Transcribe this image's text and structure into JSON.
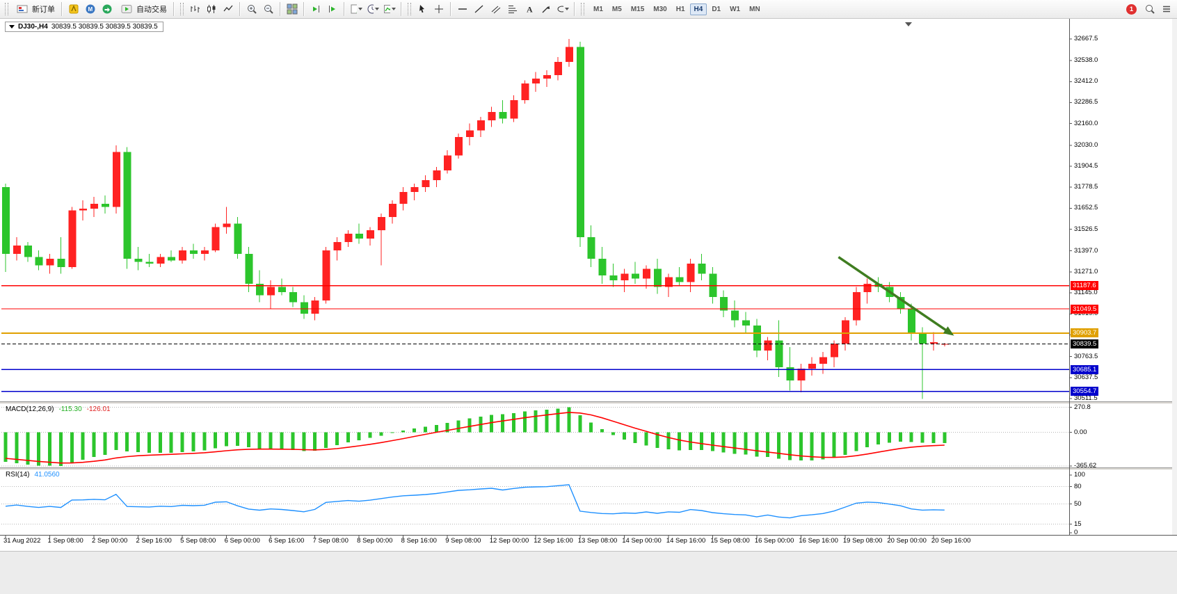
{
  "toolbar": {
    "new_order_label": "新订单",
    "auto_trading_label": "自动交易",
    "timeframes": [
      "M1",
      "M5",
      "M15",
      "M30",
      "H1",
      "H4",
      "D1",
      "W1",
      "MN"
    ],
    "active_timeframe": "H4",
    "notification_count": "1"
  },
  "chart": {
    "symbol_timeframe": "DJ30-,H4",
    "ohlc": "30839.5 30839.5 30839.5 30839.5"
  },
  "chart_data": {
    "type": "candlestick",
    "symbol": "DJ30-",
    "timeframe": "H4",
    "colors": {
      "candle_up": "#ff2222",
      "candle_down": "#2cc52c",
      "macd_histogram": "#2cc52c",
      "macd_signal": "#ff0000",
      "rsi_line": "#1e90ff"
    },
    "y_range": {
      "top": 32752,
      "bottom": 30500
    },
    "y_ticks": [
      "32667.5",
      "32538.0",
      "32412.0",
      "32286.5",
      "32160.0",
      "32030.0",
      "31904.5",
      "31778.5",
      "31652.5",
      "31526.5",
      "31397.0",
      "31271.0",
      "31145.0",
      "31019.0",
      "30893.0",
      "30763.5",
      "30637.5",
      "30511.5"
    ],
    "x_labels": [
      [
        0,
        "31 Aug 2022"
      ],
      [
        4,
        "1 Sep 08:00"
      ],
      [
        8,
        "2 Sep 00:00"
      ],
      [
        12,
        "2 Sep 16:00"
      ],
      [
        16,
        "5 Sep 08:00"
      ],
      [
        20,
        "6 Sep 00:00"
      ],
      [
        24,
        "6 Sep 16:00"
      ],
      [
        28,
        "7 Sep 08:00"
      ],
      [
        32,
        "8 Sep 00:00"
      ],
      [
        36,
        "8 Sep 16:00"
      ],
      [
        40,
        "9 Sep 08:00"
      ],
      [
        44,
        "12 Sep 00:00"
      ],
      [
        48,
        "12 Sep 16:00"
      ],
      [
        52,
        "13 Sep 08:00"
      ],
      [
        56,
        "14 Sep 00:00"
      ],
      [
        60,
        "14 Sep 16:00"
      ],
      [
        64,
        "15 Sep 08:00"
      ],
      [
        68,
        "16 Sep 00:00"
      ],
      [
        72,
        "16 Sep 16:00"
      ],
      [
        76,
        "19 Sep 08:00"
      ],
      [
        80,
        "20 Sep 00:00"
      ],
      [
        84,
        "20 Sep 16:00"
      ]
    ],
    "candles": [
      [
        31780,
        31800,
        31270,
        31380
      ],
      [
        31380,
        31480,
        31340,
        31430
      ],
      [
        31430,
        31450,
        31330,
        31360
      ],
      [
        31360,
        31400,
        31280,
        31310
      ],
      [
        31310,
        31380,
        31260,
        31350
      ],
      [
        31350,
        31480,
        31260,
        31300
      ],
      [
        31300,
        31660,
        31290,
        31640
      ],
      [
        31640,
        31700,
        31580,
        31650
      ],
      [
        31650,
        31720,
        31600,
        31680
      ],
      [
        31680,
        31730,
        31620,
        31660
      ],
      [
        31660,
        32030,
        31620,
        31990
      ],
      [
        31990,
        32020,
        31290,
        31350
      ],
      [
        31350,
        31420,
        31280,
        31330
      ],
      [
        31330,
        31380,
        31300,
        31320
      ],
      [
        31320,
        31380,
        31300,
        31360
      ],
      [
        31360,
        31400,
        31330,
        31340
      ],
      [
        31340,
        31420,
        31320,
        31400
      ],
      [
        31400,
        31440,
        31350,
        31380
      ],
      [
        31380,
        31420,
        31340,
        31400
      ],
      [
        31400,
        31560,
        31390,
        31540
      ],
      [
        31540,
        31660,
        31500,
        31560
      ],
      [
        31560,
        31600,
        31350,
        31380
      ],
      [
        31380,
        31420,
        31150,
        31200
      ],
      [
        31200,
        31280,
        31090,
        31130
      ],
      [
        31130,
        31220,
        31050,
        31180
      ],
      [
        31180,
        31230,
        31130,
        31150
      ],
      [
        31150,
        31180,
        31060,
        31090
      ],
      [
        31090,
        31130,
        30990,
        31020
      ],
      [
        31020,
        31120,
        30980,
        31100
      ],
      [
        31100,
        31420,
        31080,
        31400
      ],
      [
        31400,
        31480,
        31340,
        31450
      ],
      [
        31450,
        31520,
        31420,
        31500
      ],
      [
        31500,
        31560,
        31440,
        31470
      ],
      [
        31470,
        31540,
        31430,
        31520
      ],
      [
        31520,
        31620,
        31310,
        31600
      ],
      [
        31600,
        31700,
        31560,
        31680
      ],
      [
        31680,
        31780,
        31640,
        31750
      ],
      [
        31750,
        31800,
        31700,
        31780
      ],
      [
        31780,
        31850,
        31750,
        31820
      ],
      [
        31820,
        31900,
        31780,
        31880
      ],
      [
        31880,
        32000,
        31860,
        31970
      ],
      [
        31970,
        32100,
        31950,
        32080
      ],
      [
        32080,
        32160,
        32030,
        32120
      ],
      [
        32120,
        32200,
        32080,
        32180
      ],
      [
        32180,
        32260,
        32140,
        32230
      ],
      [
        32230,
        32300,
        32160,
        32190
      ],
      [
        32190,
        32330,
        32170,
        32300
      ],
      [
        32300,
        32420,
        32280,
        32400
      ],
      [
        32400,
        32470,
        32350,
        32430
      ],
      [
        32430,
        32480,
        32380,
        32450
      ],
      [
        32450,
        32560,
        32420,
        32530
      ],
      [
        32530,
        32667.5,
        32500,
        32620
      ],
      [
        32620,
        32650,
        31420,
        31480
      ],
      [
        31480,
        31550,
        31300,
        31350
      ],
      [
        31350,
        31420,
        31200,
        31250
      ],
      [
        31250,
        31320,
        31180,
        31220
      ],
      [
        31220,
        31290,
        31150,
        31260
      ],
      [
        31260,
        31330,
        31200,
        31230
      ],
      [
        31230,
        31310,
        31170,
        31290
      ],
      [
        31290,
        31350,
        31140,
        31180
      ],
      [
        31180,
        31260,
        31120,
        31240
      ],
      [
        31240,
        31300,
        31190,
        31210
      ],
      [
        31210,
        31350,
        31150,
        31320
      ],
      [
        31320,
        31380,
        31220,
        31260
      ],
      [
        31260,
        31300,
        31080,
        31120
      ],
      [
        31120,
        31160,
        31000,
        31040
      ],
      [
        31040,
        31100,
        30940,
        30980
      ],
      [
        30980,
        31030,
        30900,
        30950
      ],
      [
        30950,
        30990,
        30760,
        30800
      ],
      [
        30800,
        30880,
        30740,
        30860
      ],
      [
        30860,
        30980,
        30640,
        30700
      ],
      [
        30700,
        30820,
        30560,
        30620
      ],
      [
        30620,
        30720,
        30550,
        30690
      ],
      [
        30690,
        30760,
        30650,
        30720
      ],
      [
        30720,
        30790,
        30660,
        30760
      ],
      [
        30760,
        30860,
        30700,
        30840
      ],
      [
        30840,
        31000,
        30800,
        30980
      ],
      [
        30980,
        31180,
        30950,
        31150
      ],
      [
        31150,
        31230,
        31080,
        31200
      ],
      [
        31200,
        31240,
        31150,
        31180
      ],
      [
        31180,
        31210,
        31090,
        31120
      ],
      [
        31120,
        31150,
        31020,
        31050
      ],
      [
        31050,
        31080,
        30860,
        30900
      ],
      [
        30900,
        30940,
        30510,
        30840
      ],
      [
        30840,
        30910,
        30800,
        30850
      ],
      [
        30839.5,
        30845,
        30825,
        30839.5
      ]
    ],
    "hlines": [
      {
        "price": 31187.6,
        "label": "31187.6",
        "color": "#ff0000",
        "width": 1.3,
        "style": "solid",
        "name": "resistance-line-31187",
        "role": "object"
      },
      {
        "price": 31049.5,
        "label": "31049.5",
        "color": "#ff0000",
        "width": 1.3,
        "style": "solid",
        "name": "resistance-line-31049",
        "role": "object"
      },
      {
        "price": 30903.7,
        "label": "30903.7",
        "color": "#e0a000",
        "width": 2,
        "style": "solid",
        "name": "pivot-line-30903",
        "role": "object"
      },
      {
        "price": 30839.5,
        "label": "30839.5",
        "color": "#000000",
        "width": 1,
        "style": "dash",
        "name": "current-price-line",
        "role": "current"
      },
      {
        "price": 30685.1,
        "label": "30685.1",
        "color": "#0000cc",
        "width": 1.3,
        "style": "solid",
        "name": "support-line-30685",
        "role": "object"
      },
      {
        "price": 30554.7,
        "label": "30554.7",
        "color": "#0000cc",
        "width": 1.3,
        "style": "solid",
        "name": "support-line-30554",
        "role": "object"
      }
    ],
    "arrow": {
      "from_bar": 75.4,
      "from_price": 31360,
      "to_bar": 85.5,
      "to_price": 30905,
      "color": "#3f7d20"
    },
    "indicators": {
      "macd": {
        "label": "MACD(12,26,9)",
        "main": "-115.30",
        "signal": "-126.01",
        "ticks": [
          "270.8",
          "0.00",
          "-365.62"
        ]
      },
      "rsi": {
        "label": "RSI(14)",
        "value": "41.0560",
        "levels": [
          "100",
          "80",
          "50",
          "15",
          "0"
        ]
      }
    }
  }
}
